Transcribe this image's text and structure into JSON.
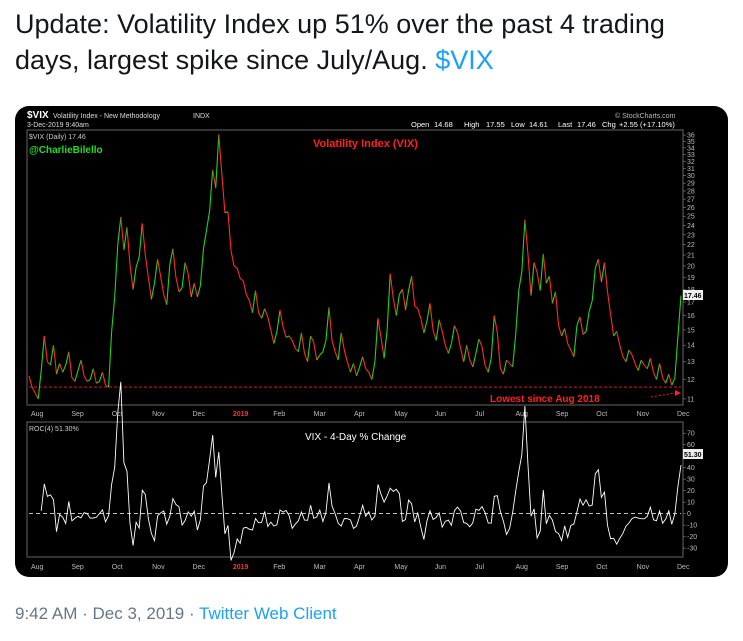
{
  "tweet": {
    "text_before": "Update: Volatility Index up 51% over the past 4 trading days, largest spike since July/Aug.",
    "cashtag": "$VIX"
  },
  "meta": {
    "time": "9:42 AM",
    "sep1": "·",
    "date": "Dec 3, 2019",
    "sep2": "·",
    "client": "Twitter Web Client"
  },
  "chart_header": {
    "ticker": "$VIX",
    "name": "Volatility Index - New Methodology",
    "exchange": "INDX",
    "datetime": "3-Dec-2019 9:40am",
    "open_label": "Open",
    "open": "14.68",
    "high_label": "High",
    "high": "17.55",
    "low_label": "Low",
    "low": "14.61",
    "last_label": "Last",
    "last": "17.46",
    "chg_label": "Chg",
    "chg": "+2.55 (+17.10%)",
    "source": "© StockCharts.com"
  },
  "colors": {
    "up": "#1fd41f",
    "down": "#ff2a2a",
    "accent_red": "#ff2020",
    "twitter_blue": "#1da1f2",
    "label_green": "#22dd22"
  },
  "chart_data": [
    {
      "type": "line",
      "title": "Volatility Index (VIX)",
      "legend": "$VIX (Daily) 17.46",
      "author": "@CharlieBilello",
      "annotation": "Lowest since Aug 2018",
      "last_value_label": "17.46",
      "x_ticks": [
        "Aug",
        "Sep",
        "Oct",
        "Nov",
        "Dec",
        "2019",
        "Feb",
        "Mar",
        "Apr",
        "May",
        "Jun",
        "Jul",
        "Aug",
        "Sep",
        "Oct",
        "Nov",
        "Dec"
      ],
      "y_ticks": [
        "11",
        "12",
        "13",
        "14",
        "15",
        "16",
        "17",
        "18",
        "19",
        "20",
        "21",
        "22",
        "23",
        "24",
        "25",
        "26",
        "27",
        "28",
        "29",
        "30",
        "31",
        "32",
        "33",
        "34",
        "35",
        "36"
      ],
      "y_scale": "log",
      "ylim": [
        10.8,
        36.5
      ],
      "reference_line": 11.6,
      "values": [
        12.2,
        11.6,
        11.3,
        11.0,
        12.5,
        14.6,
        13.0,
        12.8,
        14.0,
        12.3,
        12.9,
        12.4,
        12.8,
        13.6,
        12.1,
        11.9,
        12.5,
        13.1,
        12.2,
        11.9,
        12.0,
        12.6,
        11.8,
        11.9,
        12.4,
        11.7,
        11.6,
        14.9,
        17.4,
        22.0,
        24.9,
        21.5,
        23.8,
        20.1,
        18.0,
        19.9,
        20.8,
        24.2,
        21.0,
        19.0,
        17.2,
        18.5,
        20.6,
        19.1,
        17.6,
        16.8,
        20.1,
        21.6,
        19.0,
        17.8,
        18.1,
        20.3,
        19.3,
        17.4,
        18.5,
        17.4,
        18.3,
        21.6,
        23.5,
        25.6,
        30.8,
        28.4,
        36.1,
        30.2,
        25.4,
        25.5,
        21.4,
        20.0,
        19.8,
        18.9,
        18.7,
        17.6,
        17.1,
        16.2,
        17.9,
        16.2,
        15.8,
        16.5,
        15.9,
        15.0,
        14.1,
        14.9,
        16.4,
        15.2,
        14.5,
        14.6,
        14.3,
        13.8,
        13.6,
        14.8,
        13.5,
        13.0,
        14.6,
        14.2,
        13.1,
        13.4,
        13.6,
        14.3,
        16.6,
        14.3,
        13.6,
        13.1,
        14.8,
        13.7,
        13.0,
        12.4,
        12.9,
        12.2,
        12.7,
        13.3,
        12.6,
        12.4,
        12.0,
        13.0,
        15.8,
        14.5,
        13.2,
        15.0,
        19.3,
        17.3,
        16.0,
        17.6,
        18.0,
        16.4,
        17.9,
        19.1,
        16.7,
        16.5,
        15.8,
        14.8,
        15.6,
        16.9,
        15.0,
        14.3,
        15.7,
        14.9,
        14.0,
        13.5,
        14.1,
        15.3,
        14.8,
        13.8,
        13.0,
        14.0,
        13.1,
        12.7,
        13.5,
        14.4,
        13.9,
        12.8,
        12.4,
        13.2,
        16.0,
        14.8,
        12.6,
        12.3,
        13.1,
        12.9,
        12.7,
        14.7,
        17.9,
        19.5,
        24.6,
        21.1,
        17.5,
        20.3,
        19.4,
        17.9,
        21.1,
        18.5,
        19.1,
        16.9,
        17.8,
        15.3,
        14.6,
        15.1,
        14.1,
        13.7,
        13.3,
        15.3,
        15.9,
        14.7,
        14.9,
        16.3,
        17.1,
        19.8,
        20.6,
        18.6,
        20.3,
        17.8,
        16.1,
        14.6,
        14.9,
        14.0,
        13.3,
        13.0,
        13.7,
        13.4,
        12.9,
        12.5,
        13.1,
        12.8,
        12.6,
        13.2,
        12.4,
        12.0,
        12.9,
        12.1,
        11.8,
        12.3,
        11.7,
        12.1,
        14.6,
        17.5
      ]
    },
    {
      "type": "line",
      "title": "VIX - 4-Day % Change",
      "legend": "ROC(4) 51.30%",
      "last_value_label": "51.30",
      "y_ticks": [
        "-30",
        "-20",
        "-10",
        "0",
        "10",
        "20",
        "30",
        "40",
        "50",
        "60",
        "70"
      ],
      "ylim": [
        -36,
        78
      ],
      "zero_line": 0
    }
  ]
}
